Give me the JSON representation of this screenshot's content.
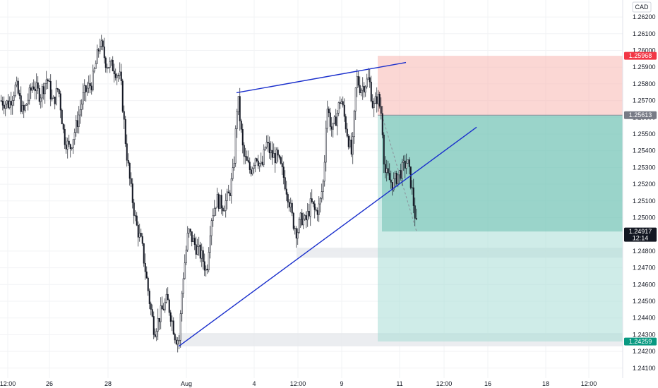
{
  "chart_data": {
    "type": "candlestick",
    "currency_label": "CAD",
    "y_axis": {
      "range": [
        1.2405,
        1.2628
      ],
      "ticks": [
        "1.26200",
        "1.26100",
        "1.26000",
        "1.25900",
        "1.25800",
        "1.25700",
        "1.25600",
        "1.25500",
        "1.25400",
        "1.25300",
        "1.25200",
        "1.25100",
        "1.25000",
        "1.24800",
        "1.24700",
        "1.24600",
        "1.24500",
        "1.24400",
        "1.24300",
        "1.24200",
        "1.24100"
      ]
    },
    "x_axis": {
      "ticks": [
        "12:00",
        "26",
        "28",
        "Aug",
        "4",
        "12:00",
        "9",
        "11",
        "12:00",
        "16",
        "18",
        "12:00"
      ]
    },
    "price_badges": {
      "stop": {
        "label": "1.25968",
        "value": 1.25968,
        "color": "#f23645"
      },
      "entry": {
        "label": "1.25613",
        "value": 1.25613,
        "color": "#787b86"
      },
      "current": {
        "label": "1.24917",
        "value": 1.24917,
        "sub": "12:14",
        "color": "#131722"
      },
      "target": {
        "label": "1.24259",
        "value": 1.24259,
        "color": "#089981"
      }
    },
    "short_position": {
      "stop": 1.25968,
      "entry": 1.25613,
      "mid": 1.24917,
      "target": 1.24259
    },
    "support_zones": [
      {
        "from": 1.2476,
        "to": 1.2482
      },
      {
        "from": 1.2423,
        "to": 1.2431
      }
    ],
    "trendlines": [
      {
        "name": "upper",
        "color": "#1a2fcc"
      },
      {
        "name": "lower",
        "color": "#1a2fcc"
      }
    ],
    "colors": {
      "up": "#ffffff",
      "down": "#131722",
      "wick": "#131722",
      "grid": "#f2f3f5"
    }
  }
}
